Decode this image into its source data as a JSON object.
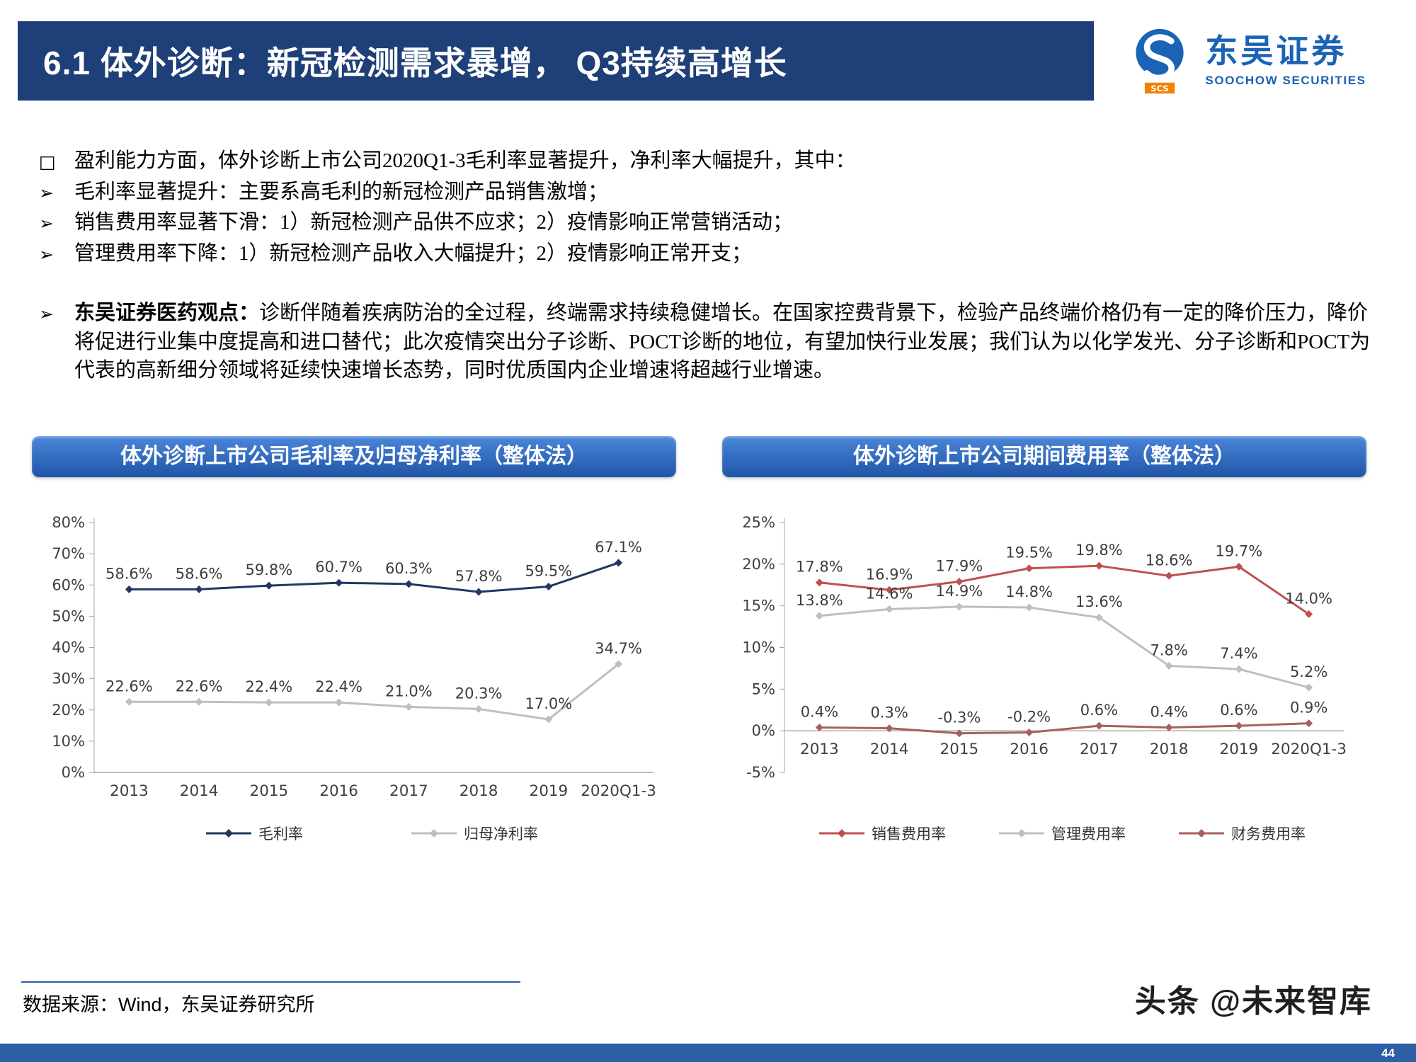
{
  "theme": {
    "header_blue": "#1e3f77",
    "panel_blue_top": "#4b86d9",
    "panel_blue_bottom": "#1f55a8",
    "footer_blue": "#2d5fa6",
    "logo_blue": "#1a63b5",
    "logo_orange": "#f08300"
  },
  "header": {
    "title": "6.1 体外诊断：新冠检测需求暴增， Q3持续高增长",
    "logo": {
      "name": "东吴证券",
      "sub": "SOOCHOW SECURITIES",
      "badge": "SCS"
    }
  },
  "bullets": [
    {
      "marker": "□",
      "lead": "",
      "text": "盈利能力方面，体外诊断上市公司2020Q1-3毛利率显著提升，净利率大幅提升，其中："
    },
    {
      "marker": "➢",
      "lead": "",
      "text": "毛利率显著提升：主要系高毛利的新冠检测产品销售激增；"
    },
    {
      "marker": "➢",
      "lead": "",
      "text": "销售费用率显著下滑：1）新冠检测产品供不应求；2）疫情影响正常营销活动；"
    },
    {
      "marker": "➢",
      "lead": "",
      "text": "管理费用率下降：1）新冠检测产品收入大幅提升；2）疫情影响正常开支；"
    },
    {
      "marker": "➢",
      "lead": "东吴证券医药观点：",
      "text": "诊断伴随着疾病防治的全过程，终端需求持续稳健增长。在国家控费背景下，检验产品终端价格仍有一定的降价压力，降价将促进行业集中度提高和进口替代；此次疫情突出分子诊断、POCT诊断的地位，有望加快行业发展；我们认为以化学发光、分子诊断和POCT为代表的高新细分领域将延续快速增长态势，同时优质国内企业增速将超越行业增速。"
    }
  ],
  "chart_data": [
    {
      "type": "line",
      "title": "体外诊断上市公司毛利率及归母净利率（整体法）",
      "categories": [
        "2013",
        "2014",
        "2015",
        "2016",
        "2017",
        "2018",
        "2019",
        "2020Q1-3"
      ],
      "ylim": [
        0,
        80
      ],
      "ytick_step": 10,
      "unit": "%",
      "grid": false,
      "legend_position": "bottom",
      "series": [
        {
          "name": "毛利率",
          "color": "#1F3864",
          "values": [
            58.6,
            58.6,
            59.8,
            60.7,
            60.3,
            57.8,
            59.5,
            67.1
          ]
        },
        {
          "name": "归母净利率",
          "color": "#BFBFBF",
          "values": [
            22.6,
            22.6,
            22.4,
            22.4,
            21.0,
            20.3,
            17.0,
            34.7
          ]
        }
      ]
    },
    {
      "type": "line",
      "title": "体外诊断上市公司期间费用率（整体法）",
      "categories": [
        "2013",
        "2014",
        "2015",
        "2016",
        "2017",
        "2018",
        "2019",
        "2020Q1-3"
      ],
      "ylim": [
        -5,
        25
      ],
      "ytick_step": 5,
      "unit": "%",
      "grid": false,
      "legend_position": "bottom",
      "series": [
        {
          "name": "销售费用率",
          "color": "#C0504D",
          "values": [
            17.8,
            16.9,
            17.9,
            19.5,
            19.8,
            18.6,
            19.7,
            14.0
          ]
        },
        {
          "name": "管理费用率",
          "color": "#BFBFBF",
          "values": [
            13.8,
            14.6,
            14.9,
            14.8,
            13.6,
            7.8,
            7.4,
            5.2
          ]
        },
        {
          "name": "财务费用率",
          "color": "#A4635A",
          "values": [
            0.4,
            0.3,
            -0.3,
            -0.2,
            0.6,
            0.4,
            0.6,
            0.9
          ]
        }
      ]
    }
  ],
  "footer": {
    "source": "数据来源：Wind，东吴证券研究所",
    "watermark": "头条 @未来智库",
    "page_number": "44"
  }
}
